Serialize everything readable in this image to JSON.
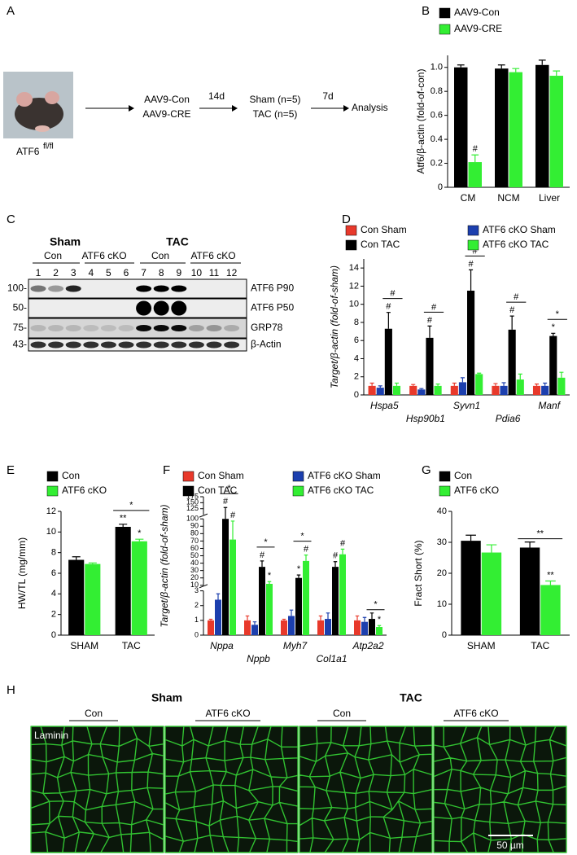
{
  "panels": [
    "A",
    "B",
    "C",
    "D",
    "E",
    "F",
    "G",
    "H"
  ],
  "schematic": {
    "genotype": "ATF6",
    "genotype_sup": "fl/fl",
    "treatment": [
      "AAV9-Con",
      "AAV9-CRE"
    ],
    "interval1": "14d",
    "groups": [
      "Sham (n=5)",
      "TAC (n=5)"
    ],
    "interval2": "7d",
    "endpoint": "Analysis"
  },
  "blot": {
    "conditions": [
      "Sham",
      "TAC"
    ],
    "genotypes": [
      "Con",
      "ATF6 cKO",
      "Con",
      "ATF6 cKO"
    ],
    "lanes": [
      "1",
      "2",
      "3",
      "4",
      "5",
      "6",
      "7",
      "8",
      "9",
      "10",
      "11",
      "12"
    ],
    "markers": [
      "100-",
      "50-",
      "75-",
      "43-"
    ],
    "bands": [
      "ATF6 P90",
      "ATF6 P50",
      "GRP78",
      "β-Actin"
    ]
  },
  "histology": {
    "conditions": [
      "Sham",
      "TAC"
    ],
    "genotypes": [
      "Con",
      "ATF6 cKO",
      "Con",
      "ATF6 cKO"
    ],
    "stain": "Laminin",
    "scale_bar": "50 µm"
  },
  "chart_data": [
    {
      "type": "bar",
      "ylabel": "Atf6/β-actin (fold-of-con)",
      "categories": [
        "CM",
        "NCM",
        "Liver"
      ],
      "series": [
        {
          "name": "AAV9-Con",
          "color": "#000000",
          "values": [
            1.0,
            0.99,
            1.02
          ],
          "errors": [
            0.02,
            0.03,
            0.04
          ]
        },
        {
          "name": "AAV9-CRE",
          "color": "#33ee33",
          "values": [
            0.21,
            0.96,
            0.93
          ],
          "errors": [
            0.06,
            0.03,
            0.04
          ]
        }
      ],
      "ylim": [
        0,
        1.1
      ],
      "yticks": [
        0,
        0.2,
        0.4,
        0.6,
        0.8,
        {
          "value": 1,
          "label": "1.0"
        }
      ],
      "markers": [
        {
          "category": 0,
          "series": 1,
          "text": "#"
        }
      ],
      "brackets": []
    },
    {
      "type": "bar",
      "ylabel": "Target/β-actin (fold-of-sham)",
      "categories": [
        "Hspa5",
        "Hsp90b1",
        "Syvn1",
        "Pdia6",
        "Manf"
      ],
      "series": [
        {
          "name": "Con Sham",
          "color": "#e8392b",
          "values": [
            1.0,
            1.0,
            1.0,
            1.0,
            1.0
          ],
          "errors": [
            0.3,
            0.15,
            0.3,
            0.25,
            0.2
          ]
        },
        {
          "name": "ATF6 cKO Sham",
          "color": "#1c3fae",
          "values": [
            0.8,
            0.6,
            1.4,
            1.0,
            1.0
          ],
          "errors": [
            0.2,
            0.1,
            0.5,
            0.35,
            0.3
          ]
        },
        {
          "name": "Con TAC",
          "color": "#000000",
          "values": [
            7.3,
            6.3,
            11.5,
            7.2,
            6.5
          ],
          "errors": [
            1.8,
            1.3,
            2.3,
            1.5,
            0.3
          ]
        },
        {
          "name": "ATF6 cKO TAC",
          "color": "#33ee33",
          "values": [
            1.0,
            1.0,
            2.3,
            1.7,
            1.9
          ],
          "errors": [
            0.3,
            0.2,
            0.1,
            0.6,
            0.6
          ]
        }
      ],
      "ylim": [
        0,
        15
      ],
      "yticks": [
        0,
        2,
        4,
        6,
        8,
        10,
        12,
        14
      ],
      "markers": [
        {
          "category": 0,
          "series": 2,
          "text": "#"
        },
        {
          "category": 1,
          "series": 2,
          "text": "#"
        },
        {
          "category": 2,
          "series": 2,
          "text": "#"
        },
        {
          "category": 3,
          "series": 2,
          "text": "#"
        },
        {
          "category": 4,
          "series": 2,
          "text": "*"
        }
      ],
      "brackets": [
        {
          "category": 0,
          "series": [
            2,
            3
          ],
          "text": "#"
        },
        {
          "category": 1,
          "series": [
            2,
            3
          ],
          "text": "#"
        },
        {
          "category": 2,
          "series": [
            2,
            3
          ],
          "text": "#"
        },
        {
          "category": 3,
          "series": [
            2,
            3
          ],
          "text": "#"
        },
        {
          "category": 4,
          "series": [
            2,
            3
          ],
          "text": "*"
        }
      ]
    },
    {
      "type": "bar",
      "ylabel": "HW/TL (mg/mm)",
      "categories": [
        "SHAM",
        "TAC"
      ],
      "series": [
        {
          "name": "Con",
          "color": "#000000",
          "values": [
            7.3,
            10.5
          ],
          "errors": [
            0.3,
            0.25
          ]
        },
        {
          "name": "ATF6 cKO",
          "color": "#33ee33",
          "values": [
            6.9,
            9.1
          ],
          "errors": [
            0.1,
            0.2
          ]
        }
      ],
      "ylim": [
        0,
        12
      ],
      "yticks": [
        0,
        2,
        4,
        6,
        8,
        10,
        12
      ],
      "markers": [
        {
          "category": 1,
          "series": 0,
          "text": "**"
        },
        {
          "category": 1,
          "series": 1,
          "text": "*"
        }
      ],
      "brackets": [
        {
          "category": 1,
          "series": [
            0,
            1
          ],
          "text": "*"
        }
      ]
    },
    {
      "type": "bar",
      "ylabel": "Target/β-actin (fold-of-sham)",
      "categories": [
        "Nppa",
        "Nppb",
        "Myh7",
        "Col1a1",
        "Atp2a2"
      ],
      "series": [
        {
          "name": "Con Sham",
          "color": "#e8392b",
          "values": [
            1,
            1,
            1,
            1,
            1
          ],
          "errors": [
            0.08,
            0.3,
            0.08,
            0.3,
            0.3
          ]
        },
        {
          "name": "ATF6 cKO Sham",
          "color": "#1c3fae",
          "values": [
            2.4,
            0.7,
            1.3,
            1.1,
            0.9
          ],
          "errors": [
            0.4,
            0.2,
            0.4,
            0.4,
            0.3
          ]
        },
        {
          "name": "Con TAC",
          "color": "#000000",
          "values": [
            100,
            35,
            20,
            35,
            1.1
          ],
          "errors": [
            30,
            8,
            4,
            7,
            0.4
          ]
        },
        {
          "name": "ATF6 cKO TAC",
          "color": "#33ee33",
          "values": [
            72,
            12,
            43,
            52,
            0.55
          ],
          "errors": [
            25,
            3,
            8,
            7,
            0.1
          ]
        }
      ],
      "y_segments": [
        {
          "ylim": [
            0,
            3
          ],
          "yticks": [
            0,
            1,
            2,
            3
          ]
        },
        {
          "ylim": [
            10,
            100
          ],
          "yticks": [
            10,
            20,
            30,
            40,
            50,
            60,
            70,
            80,
            90,
            100
          ]
        },
        {
          "ylim": [
            100,
            175
          ],
          "yticks": [
            125,
            150,
            175
          ]
        }
      ],
      "markers": [
        {
          "category": 0,
          "series": 2,
          "text": "#"
        },
        {
          "category": 0,
          "series": 3,
          "text": "#"
        },
        {
          "category": 1,
          "series": 2,
          "text": "#"
        },
        {
          "category": 1,
          "series": 3,
          "text": "*"
        },
        {
          "category": 2,
          "series": 2,
          "text": "*"
        },
        {
          "category": 2,
          "series": 3,
          "text": "#"
        },
        {
          "category": 3,
          "series": 2,
          "text": "#"
        },
        {
          "category": 3,
          "series": 3,
          "text": "#"
        },
        {
          "category": 4,
          "series": 3,
          "text": "*"
        }
      ],
      "brackets": [
        {
          "category": 0,
          "series": [
            2,
            3
          ],
          "text": "*"
        },
        {
          "category": 1,
          "series": [
            2,
            3
          ],
          "text": "*"
        },
        {
          "category": 2,
          "series": [
            2,
            3
          ],
          "text": "*"
        },
        {
          "category": 4,
          "series": [
            2,
            3
          ],
          "text": "*"
        }
      ]
    },
    {
      "type": "bar",
      "ylabel": "Fract Short (%)",
      "categories": [
        "SHAM",
        "TAC"
      ],
      "series": [
        {
          "name": "Con",
          "color": "#000000",
          "values": [
            30.5,
            28.3
          ],
          "errors": [
            1.8,
            1.8
          ]
        },
        {
          "name": "ATF6 cKO",
          "color": "#33ee33",
          "values": [
            26.7,
            16.2
          ],
          "errors": [
            2.5,
            1.3
          ]
        }
      ],
      "ylim": [
        0,
        40
      ],
      "yticks": [
        0,
        10,
        20,
        30,
        40
      ],
      "markers": [
        {
          "category": 1,
          "series": 1,
          "text": "**"
        }
      ],
      "brackets": [
        {
          "category": 1,
          "series": [
            0,
            1
          ],
          "text": "**"
        }
      ]
    }
  ]
}
